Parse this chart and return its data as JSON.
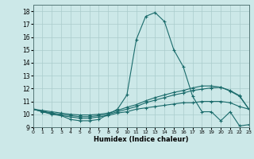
{
  "xlabel": "Humidex (Indice chaleur)",
  "xlim": [
    0,
    23
  ],
  "ylim": [
    9,
    18.5
  ],
  "yticks": [
    9,
    10,
    11,
    12,
    13,
    14,
    15,
    16,
    17,
    18
  ],
  "xticks": [
    0,
    1,
    2,
    3,
    4,
    5,
    6,
    7,
    8,
    9,
    10,
    11,
    12,
    13,
    14,
    15,
    16,
    17,
    18,
    19,
    20,
    21,
    22,
    23
  ],
  "bg_color": "#cce8e8",
  "grid_color": "#aacccc",
  "line_color": "#1a6b6b",
  "line1_x": [
    0,
    1,
    3,
    4,
    5,
    6,
    7,
    8,
    9,
    10,
    11,
    12,
    13,
    14,
    15,
    16,
    17,
    18,
    19,
    20,
    21,
    22,
    23
  ],
  "line1_y": [
    10.4,
    10.2,
    9.9,
    9.6,
    9.5,
    9.5,
    9.6,
    10.0,
    10.4,
    11.5,
    15.8,
    17.6,
    17.9,
    17.2,
    15.0,
    13.7,
    11.4,
    10.2,
    10.2,
    9.5,
    10.2,
    9.1,
    9.2
  ],
  "line2_x": [
    0,
    1,
    2,
    3,
    4,
    5,
    6,
    7,
    8,
    9,
    10,
    11,
    12,
    13,
    14,
    15,
    16,
    17,
    18,
    19,
    20,
    21,
    22,
    23
  ],
  "line2_y": [
    10.4,
    10.3,
    10.2,
    10.1,
    10.0,
    9.95,
    9.95,
    10.0,
    10.1,
    10.3,
    10.55,
    10.75,
    11.05,
    11.3,
    11.5,
    11.7,
    11.85,
    12.05,
    12.2,
    12.2,
    12.1,
    11.8,
    11.4,
    10.4
  ],
  "line3_x": [
    0,
    1,
    2,
    3,
    4,
    5,
    6,
    7,
    8,
    9,
    10,
    11,
    12,
    13,
    14,
    15,
    16,
    17,
    18,
    19,
    20,
    21,
    22,
    23
  ],
  "line3_y": [
    10.4,
    10.25,
    10.1,
    10.0,
    9.9,
    9.82,
    9.82,
    9.9,
    10.0,
    10.2,
    10.4,
    10.6,
    10.9,
    11.1,
    11.3,
    11.5,
    11.65,
    11.85,
    11.95,
    12.05,
    12.1,
    11.85,
    11.45,
    10.4
  ],
  "line4_x": [
    0,
    1,
    2,
    3,
    4,
    5,
    6,
    7,
    8,
    9,
    10,
    11,
    12,
    13,
    14,
    15,
    16,
    17,
    18,
    19,
    20,
    21,
    22,
    23
  ],
  "line4_y": [
    10.4,
    10.2,
    10.0,
    9.9,
    9.8,
    9.7,
    9.7,
    9.8,
    9.9,
    10.1,
    10.2,
    10.4,
    10.5,
    10.6,
    10.7,
    10.8,
    10.9,
    10.9,
    11.0,
    11.0,
    11.0,
    10.9,
    10.6,
    10.4
  ]
}
